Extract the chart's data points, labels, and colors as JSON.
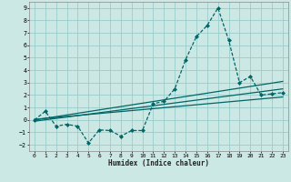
{
  "xlabel": "Humidex (Indice chaleur)",
  "bg_color": "#cce8e4",
  "grid_color": "#99cccc",
  "line_color": "#006666",
  "xlim": [
    -0.5,
    23.5
  ],
  "ylim": [
    -2.5,
    9.5
  ],
  "xticks": [
    0,
    1,
    2,
    3,
    4,
    5,
    6,
    7,
    8,
    9,
    10,
    11,
    12,
    13,
    14,
    15,
    16,
    17,
    18,
    19,
    20,
    21,
    22,
    23
  ],
  "yticks": [
    -2,
    -1,
    0,
    1,
    2,
    3,
    4,
    5,
    6,
    7,
    8,
    9
  ],
  "main_x": [
    0,
    1,
    2,
    3,
    4,
    5,
    6,
    7,
    8,
    9,
    10,
    11,
    12,
    13,
    14,
    15,
    16,
    17,
    18,
    19,
    20,
    21,
    22,
    23
  ],
  "main_y": [
    0.0,
    0.7,
    -0.5,
    -0.35,
    -0.5,
    -1.85,
    -0.8,
    -0.85,
    -1.3,
    -0.85,
    -0.85,
    1.3,
    1.5,
    2.5,
    4.85,
    6.7,
    7.6,
    9.0,
    6.4,
    3.0,
    3.5,
    2.0,
    2.1,
    2.2
  ],
  "trend1_x": [
    0,
    23
  ],
  "trend1_y": [
    0.0,
    3.1
  ],
  "trend2_x": [
    0,
    23
  ],
  "trend2_y": [
    -0.1,
    2.5
  ],
  "trend3_x": [
    0,
    23
  ],
  "trend3_y": [
    0.05,
    1.85
  ]
}
